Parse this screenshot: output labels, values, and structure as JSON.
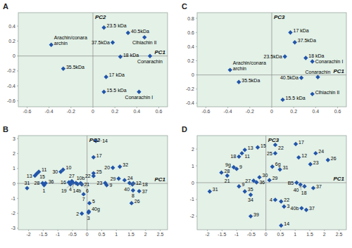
{
  "chart_data": [
    {
      "type": "scatter",
      "title": "A",
      "xlabel": "PC1",
      "ylabel": "PC2",
      "color": "#2255aa",
      "marker": "diamond",
      "xlim": [
        -0.68,
        0.68
      ],
      "ylim": [
        -0.68,
        0.58
      ],
      "xticks": [
        -0.6,
        -0.4,
        -0.2,
        0.0,
        0.2,
        0.4,
        0.6
      ],
      "yticks": [
        -0.6,
        -0.4,
        -0.2,
        0.0,
        0.2,
        0.4
      ],
      "x": [
        0.1,
        0.32,
        0.47,
        0.18,
        0.25,
        0.52,
        0.12,
        0.1,
        0.42,
        -0.38,
        -0.27
      ],
      "values": [
        0.38,
        0.31,
        0.25,
        0.18,
        -0.01,
        0.0,
        -0.28,
        -0.48,
        -0.48,
        0.15,
        -0.17
      ],
      "labels": [
        "23.5 kDa",
        "40.5kDa",
        "Clhiachin II",
        "37.5kDa",
        "18 kDa",
        "Conarachin",
        "17 kDa",
        "15.5 kDa",
        "Conarachin I",
        "Arachin/conara\narchin",
        "35.5kDa"
      ]
    },
    {
      "type": "scatter",
      "title": "C",
      "xlabel": "PC1",
      "ylabel": "PC3",
      "color": "#2255aa",
      "marker": "diamond",
      "xlim": [
        -0.68,
        0.68
      ],
      "ylim": [
        -0.45,
        0.88
      ],
      "xticks": [
        -0.6,
        -0.4,
        -0.2,
        0.0,
        0.2,
        0.4,
        0.6
      ],
      "yticks": [
        -0.4,
        -0.2,
        0.0,
        0.2,
        0.4,
        0.6,
        0.8
      ],
      "x": [
        0.17,
        0.21,
        0.12,
        0.31,
        0.37,
        0.27,
        0.42,
        0.37,
        0.1,
        -0.38,
        -0.3
      ],
      "values": [
        0.6,
        0.46,
        0.26,
        0.24,
        0.19,
        -0.04,
        -0.03,
        -0.27,
        -0.35,
        0.07,
        -0.1
      ],
      "labels": [
        "17 kDa",
        "37.5kDa",
        "23.5kDa",
        "18 kDa",
        "Conarachin I",
        "40.5kDa",
        "Conarachin",
        "Clhiachin II",
        "15.5 kDa",
        "Arachin/conara\narchin",
        "35.5kDa"
      ]
    },
    {
      "type": "scatter",
      "title": "B",
      "xlabel": "PC1",
      "ylabel": "PC2",
      "color": "#2255aa",
      "marker": "diamond",
      "xlim": [
        -2.35,
        2.75
      ],
      "ylim": [
        -3.1,
        3.2
      ],
      "xticks": [
        -2.0,
        -1.5,
        -1.0,
        -0.5,
        0.0,
        0.5,
        1.0,
        1.5,
        2.0,
        2.5
      ],
      "yticks": [
        -3,
        -2,
        -1,
        0,
        1,
        2,
        3
      ],
      "x": [
        0.3,
        0.22,
        0.88,
        1.12,
        -1.65,
        -1.72,
        -1.78,
        -0.9,
        -0.82,
        0.22,
        0.22,
        1.08,
        1.28,
        -0.52,
        -0.48,
        -0.38,
        -0.32,
        -0.22,
        -0.18,
        1.45,
        1.58,
        1.55,
        -1.52,
        -1.47,
        -1.42,
        -0.12,
        0.08,
        0.06,
        0.05,
        -0.18,
        -2.05,
        1.57,
        1.78,
        1.52,
        -0.62,
        -0.57,
        0.62,
        0.67
      ],
      "values": [
        2.85,
        1.75,
        1.05,
        1.12,
        0.78,
        0.65,
        0.52,
        0.78,
        0.92,
        0.68,
        0.5,
        0.32,
        0.22,
        0.15,
        0.05,
        0.03,
        -0.05,
        0.02,
        -0.07,
        0.03,
        0.0,
        -0.07,
        0.02,
        -0.12,
        0.02,
        -0.72,
        -1.32,
        -1.88,
        -1.95,
        -2.02,
        -0.32,
        -0.47,
        -0.52,
        -1.32,
        0.07,
        -0.07,
        0.03,
        -0.12
      ],
      "labels": [
        "14",
        "17",
        "20",
        "32",
        "11",
        "15",
        "13",
        "30",
        "10",
        "25",
        "22",
        "29",
        "24",
        "27",
        "14b",
        "4",
        "21",
        "10b",
        "6",
        "12",
        "40",
        "18",
        "28",
        "1",
        "36",
        "7",
        "5",
        "40g",
        "3",
        "2",
        "31",
        "8",
        "37",
        "26",
        "16",
        "19",
        "23",
        "9"
      ]
    },
    {
      "type": "scatter",
      "title": "D",
      "xlabel": "PC1",
      "ylabel": "PC3",
      "color": "#2255aa",
      "marker": "diamond",
      "xlim": [
        -2.35,
        2.75
      ],
      "ylim": [
        -2.8,
        2.8
      ],
      "xticks": [
        -2.0,
        -1.5,
        -1.0,
        -0.5,
        0.0,
        0.5,
        1.0,
        1.5,
        2.0,
        2.5
      ],
      "yticks": [
        -2,
        -1,
        0,
        1,
        2
      ],
      "x": [
        0.32,
        -0.28,
        1.02,
        1.7,
        2.12,
        -0.72,
        -0.82,
        -0.92,
        1.12,
        1.52,
        0.22,
        0.48,
        0.32,
        -1.52,
        -1.32,
        -1.1,
        -1.0,
        -0.22,
        0.12,
        -0.42,
        -0.32,
        1.05,
        1.18,
        1.32,
        1.62,
        -0.92,
        -0.72,
        -0.52,
        0.32,
        0.52,
        0.62,
        1.22,
        1.38,
        -0.52,
        0.52,
        -1.92
      ],
      "values": [
        2.25,
        2.1,
        2.3,
        1.75,
        1.35,
        1.95,
        1.75,
        1.55,
        1.5,
        1.1,
        0.95,
        0.78,
        1.75,
        0.6,
        0.42,
        0.92,
        0.82,
        0.32,
        0.15,
        0.12,
        0.02,
        0.0,
        -0.12,
        -0.22,
        -0.32,
        -0.22,
        -0.52,
        -0.72,
        -1.02,
        -1.12,
        -1.42,
        -1.52,
        -1.62,
        -2.0,
        -2.55,
        -0.52
      ],
      "labels": [
        "22",
        "15",
        "17",
        "24",
        "26",
        "13",
        "11",
        "18",
        "12",
        "23",
        "6g",
        "31",
        "25",
        "28",
        "21",
        "9g",
        "9",
        "30",
        "29",
        "27",
        "36",
        "B5",
        "18",
        "40",
        "37",
        "9",
        "35",
        "34",
        "4",
        "22",
        "3",
        "40b",
        "37",
        "39",
        "14",
        "31"
      ]
    }
  ]
}
